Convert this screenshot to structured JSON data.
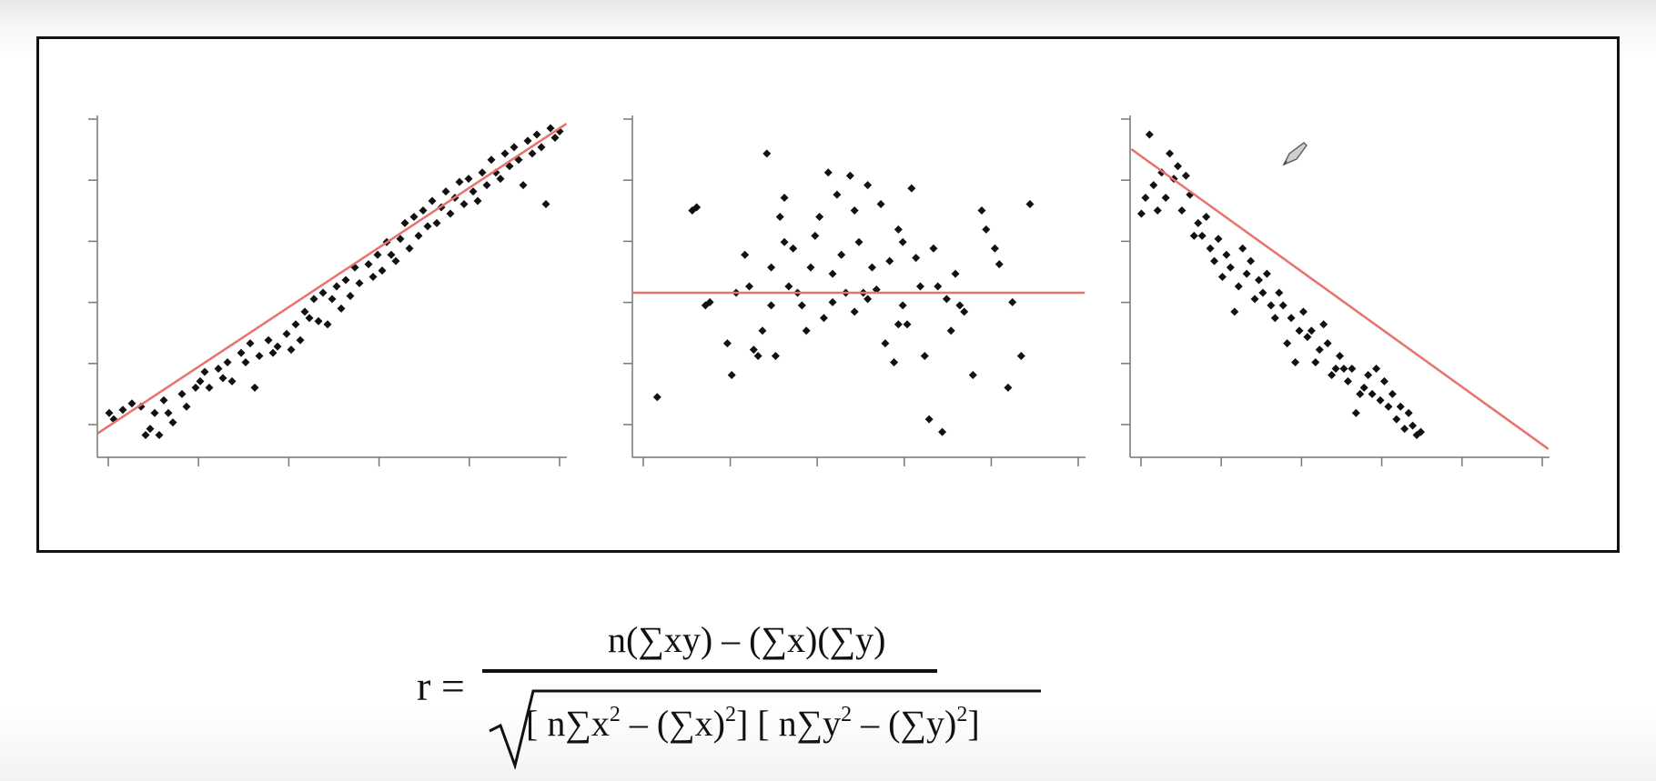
{
  "chart_data": [
    {
      "type": "scatter",
      "title": "",
      "xlabel": "",
      "ylabel": "",
      "xlim": [
        0,
        10
      ],
      "ylim": [
        0,
        10
      ],
      "grid": false,
      "trendline": {
        "slope": 0.95,
        "intercept": 0.5,
        "color": "#e8736b"
      },
      "points": [
        [
          0.1,
          1.0
        ],
        [
          0.2,
          0.8
        ],
        [
          0.4,
          1.1
        ],
        [
          0.6,
          1.3
        ],
        [
          0.8,
          1.2
        ],
        [
          0.9,
          0.3
        ],
        [
          1.0,
          0.5
        ],
        [
          1.1,
          1.0
        ],
        [
          1.2,
          0.3
        ],
        [
          1.3,
          1.4
        ],
        [
          1.4,
          1.0
        ],
        [
          1.5,
          0.7
        ],
        [
          1.7,
          1.6
        ],
        [
          1.8,
          1.2
        ],
        [
          2.0,
          1.8
        ],
        [
          2.1,
          2.0
        ],
        [
          2.2,
          2.3
        ],
        [
          2.3,
          1.8
        ],
        [
          2.5,
          2.4
        ],
        [
          2.6,
          2.1
        ],
        [
          2.7,
          2.6
        ],
        [
          2.8,
          2.0
        ],
        [
          3.0,
          2.9
        ],
        [
          3.1,
          2.6
        ],
        [
          3.2,
          3.2
        ],
        [
          3.3,
          1.8
        ],
        [
          3.4,
          2.8
        ],
        [
          3.6,
          3.3
        ],
        [
          3.7,
          2.9
        ],
        [
          3.8,
          3.1
        ],
        [
          4.0,
          3.5
        ],
        [
          4.1,
          3.0
        ],
        [
          4.2,
          3.8
        ],
        [
          4.3,
          3.3
        ],
        [
          4.4,
          4.2
        ],
        [
          4.5,
          4.0
        ],
        [
          4.6,
          4.6
        ],
        [
          4.7,
          3.9
        ],
        [
          4.8,
          4.8
        ],
        [
          4.9,
          3.8
        ],
        [
          5.0,
          4.6
        ],
        [
          5.1,
          5.0
        ],
        [
          5.2,
          4.3
        ],
        [
          5.3,
          5.2
        ],
        [
          5.4,
          4.7
        ],
        [
          5.5,
          5.6
        ],
        [
          5.6,
          5.1
        ],
        [
          5.8,
          5.7
        ],
        [
          5.9,
          5.3
        ],
        [
          6.0,
          6.0
        ],
        [
          6.1,
          5.5
        ],
        [
          6.2,
          6.4
        ],
        [
          6.3,
          6.0
        ],
        [
          6.4,
          5.8
        ],
        [
          6.5,
          6.5
        ],
        [
          6.6,
          7.0
        ],
        [
          6.7,
          6.2
        ],
        [
          6.8,
          7.2
        ],
        [
          6.9,
          6.6
        ],
        [
          7.0,
          7.4
        ],
        [
          7.1,
          6.9
        ],
        [
          7.2,
          7.7
        ],
        [
          7.3,
          7.0
        ],
        [
          7.4,
          7.5
        ],
        [
          7.5,
          8.0
        ],
        [
          7.6,
          7.3
        ],
        [
          7.7,
          7.8
        ],
        [
          7.8,
          8.3
        ],
        [
          7.9,
          7.6
        ],
        [
          8.0,
          8.4
        ],
        [
          8.1,
          8.0
        ],
        [
          8.2,
          7.7
        ],
        [
          8.3,
          8.6
        ],
        [
          8.4,
          8.2
        ],
        [
          8.5,
          9.0
        ],
        [
          8.6,
          8.6
        ],
        [
          8.7,
          8.4
        ],
        [
          8.8,
          9.2
        ],
        [
          8.9,
          8.8
        ],
        [
          9.0,
          9.4
        ],
        [
          9.1,
          9.0
        ],
        [
          9.2,
          8.2
        ],
        [
          9.3,
          9.6
        ],
        [
          9.4,
          9.2
        ],
        [
          9.5,
          9.8
        ],
        [
          9.6,
          9.4
        ],
        [
          9.7,
          7.6
        ],
        [
          9.8,
          10.0
        ],
        [
          9.9,
          9.7
        ],
        [
          10.0,
          9.9
        ]
      ]
    },
    {
      "type": "scatter",
      "title": "",
      "xlabel": "",
      "ylabel": "",
      "xlim": [
        0,
        10
      ],
      "ylim": [
        0,
        10
      ],
      "grid": false,
      "trendline": {
        "slope": 0.0,
        "intercept": 4.8,
        "color": "#e8736b"
      },
      "points": [
        [
          0.4,
          1.5
        ],
        [
          1.2,
          7.4
        ],
        [
          1.3,
          7.5
        ],
        [
          1.6,
          4.5
        ],
        [
          2.0,
          3.2
        ],
        [
          2.1,
          2.2
        ],
        [
          2.2,
          4.8
        ],
        [
          2.4,
          6.0
        ],
        [
          2.5,
          5.0
        ],
        [
          2.7,
          2.8
        ],
        [
          2.8,
          3.6
        ],
        [
          2.9,
          9.2
        ],
        [
          3.0,
          4.4
        ],
        [
          3.1,
          2.8
        ],
        [
          3.2,
          7.2
        ],
        [
          3.3,
          7.8
        ],
        [
          3.4,
          5.0
        ],
        [
          3.5,
          6.2
        ],
        [
          3.6,
          4.8
        ],
        [
          3.7,
          4.4
        ],
        [
          3.8,
          3.6
        ],
        [
          3.9,
          5.6
        ],
        [
          4.0,
          6.6
        ],
        [
          4.1,
          7.2
        ],
        [
          4.2,
          4.0
        ],
        [
          4.3,
          8.6
        ],
        [
          4.4,
          5.4
        ],
        [
          4.5,
          7.9
        ],
        [
          4.6,
          6.0
        ],
        [
          4.7,
          4.8
        ],
        [
          4.8,
          8.5
        ],
        [
          4.9,
          7.4
        ],
        [
          5.0,
          6.4
        ],
        [
          5.1,
          4.8
        ],
        [
          5.2,
          8.2
        ],
        [
          5.3,
          5.6
        ],
        [
          5.4,
          4.9
        ],
        [
          5.5,
          7.6
        ],
        [
          5.6,
          3.2
        ],
        [
          5.7,
          5.8
        ],
        [
          5.8,
          2.6
        ],
        [
          5.9,
          6.8
        ],
        [
          6.0,
          6.4
        ],
        [
          6.1,
          3.8
        ],
        [
          6.2,
          8.1
        ],
        [
          6.3,
          5.9
        ],
        [
          6.4,
          5.0
        ],
        [
          6.5,
          2.8
        ],
        [
          6.6,
          0.8
        ],
        [
          6.7,
          6.2
        ],
        [
          6.8,
          5.0
        ],
        [
          6.9,
          0.4
        ],
        [
          7.0,
          4.6
        ],
        [
          7.1,
          3.6
        ],
        [
          7.2,
          5.4
        ],
        [
          7.4,
          4.2
        ],
        [
          7.6,
          2.2
        ],
        [
          7.8,
          7.4
        ],
        [
          7.9,
          6.8
        ],
        [
          8.1,
          6.2
        ],
        [
          8.2,
          5.7
        ],
        [
          8.4,
          1.8
        ],
        [
          8.5,
          4.5
        ],
        [
          8.7,
          2.8
        ],
        [
          8.9,
          7.6
        ],
        [
          1.5,
          4.4
        ],
        [
          3.0,
          5.6
        ],
        [
          5.2,
          4.6
        ],
        [
          6.0,
          4.4
        ],
        [
          4.4,
          4.5
        ],
        [
          2.6,
          3.0
        ],
        [
          7.3,
          4.4
        ],
        [
          3.3,
          6.4
        ],
        [
          5.9,
          3.8
        ],
        [
          4.9,
          4.2
        ]
      ]
    },
    {
      "type": "scatter",
      "title": "",
      "xlabel": "",
      "ylabel": "",
      "xlim": [
        0,
        10
      ],
      "ylim": [
        0,
        10
      ],
      "grid": false,
      "trendline": {
        "slope": -0.92,
        "intercept": 9.2,
        "color": "#e8736b"
      },
      "points": [
        [
          0.1,
          7.3
        ],
        [
          0.2,
          7.8
        ],
        [
          0.3,
          9.8
        ],
        [
          0.4,
          8.2
        ],
        [
          0.5,
          7.4
        ],
        [
          0.6,
          8.6
        ],
        [
          0.7,
          7.8
        ],
        [
          0.8,
          9.2
        ],
        [
          0.9,
          8.4
        ],
        [
          1.0,
          8.8
        ],
        [
          1.1,
          7.4
        ],
        [
          1.2,
          8.5
        ],
        [
          1.3,
          7.9
        ],
        [
          1.4,
          6.6
        ],
        [
          1.5,
          7.0
        ],
        [
          1.6,
          6.6
        ],
        [
          1.7,
          7.2
        ],
        [
          1.8,
          6.2
        ],
        [
          1.9,
          5.8
        ],
        [
          2.0,
          6.5
        ],
        [
          2.1,
          5.3
        ],
        [
          2.2,
          6.0
        ],
        [
          2.3,
          5.6
        ],
        [
          2.4,
          4.2
        ],
        [
          2.5,
          5.0
        ],
        [
          2.6,
          6.2
        ],
        [
          2.7,
          5.4
        ],
        [
          2.8,
          5.8
        ],
        [
          2.9,
          4.6
        ],
        [
          3.0,
          5.2
        ],
        [
          3.1,
          4.8
        ],
        [
          3.2,
          5.4
        ],
        [
          3.3,
          4.4
        ],
        [
          3.4,
          4.0
        ],
        [
          3.5,
          4.8
        ],
        [
          3.6,
          4.4
        ],
        [
          3.7,
          3.2
        ],
        [
          3.8,
          4.0
        ],
        [
          3.9,
          2.6
        ],
        [
          4.0,
          3.6
        ],
        [
          4.1,
          4.2
        ],
        [
          4.2,
          3.4
        ],
        [
          4.3,
          3.6
        ],
        [
          4.4,
          2.6
        ],
        [
          4.5,
          3.0
        ],
        [
          4.6,
          3.8
        ],
        [
          4.7,
          3.2
        ],
        [
          4.8,
          2.2
        ],
        [
          4.9,
          2.4
        ],
        [
          5.0,
          2.8
        ],
        [
          5.1,
          2.4
        ],
        [
          5.2,
          2.0
        ],
        [
          5.3,
          2.4
        ],
        [
          5.4,
          1.0
        ],
        [
          5.5,
          1.6
        ],
        [
          5.6,
          1.8
        ],
        [
          5.7,
          2.2
        ],
        [
          5.8,
          1.6
        ],
        [
          5.9,
          2.4
        ],
        [
          6.0,
          1.4
        ],
        [
          6.1,
          2.0
        ],
        [
          6.2,
          1.2
        ],
        [
          6.3,
          1.6
        ],
        [
          6.4,
          0.8
        ],
        [
          6.5,
          1.2
        ],
        [
          6.6,
          0.5
        ],
        [
          6.7,
          1.0
        ],
        [
          6.8,
          0.6
        ],
        [
          6.9,
          0.3
        ],
        [
          7.0,
          0.4
        ]
      ]
    }
  ],
  "formula": {
    "lhs": "r =",
    "numerator": "n(∑xy) – (∑x)(∑y)",
    "den_part1": "[ n∑x",
    "den_sup1": "2",
    "den_part2": " – (∑x)",
    "den_sup2": "2",
    "den_part3": "] [ n∑y",
    "den_sup3": "2",
    "den_part4": " – (∑y)",
    "den_sup4": "2",
    "den_part5": "]"
  },
  "colors": {
    "trendline": "#e8736b",
    "points": "#111111",
    "axes": "#777777"
  },
  "icons": {
    "annotation": "pencil-cursor-icon"
  }
}
